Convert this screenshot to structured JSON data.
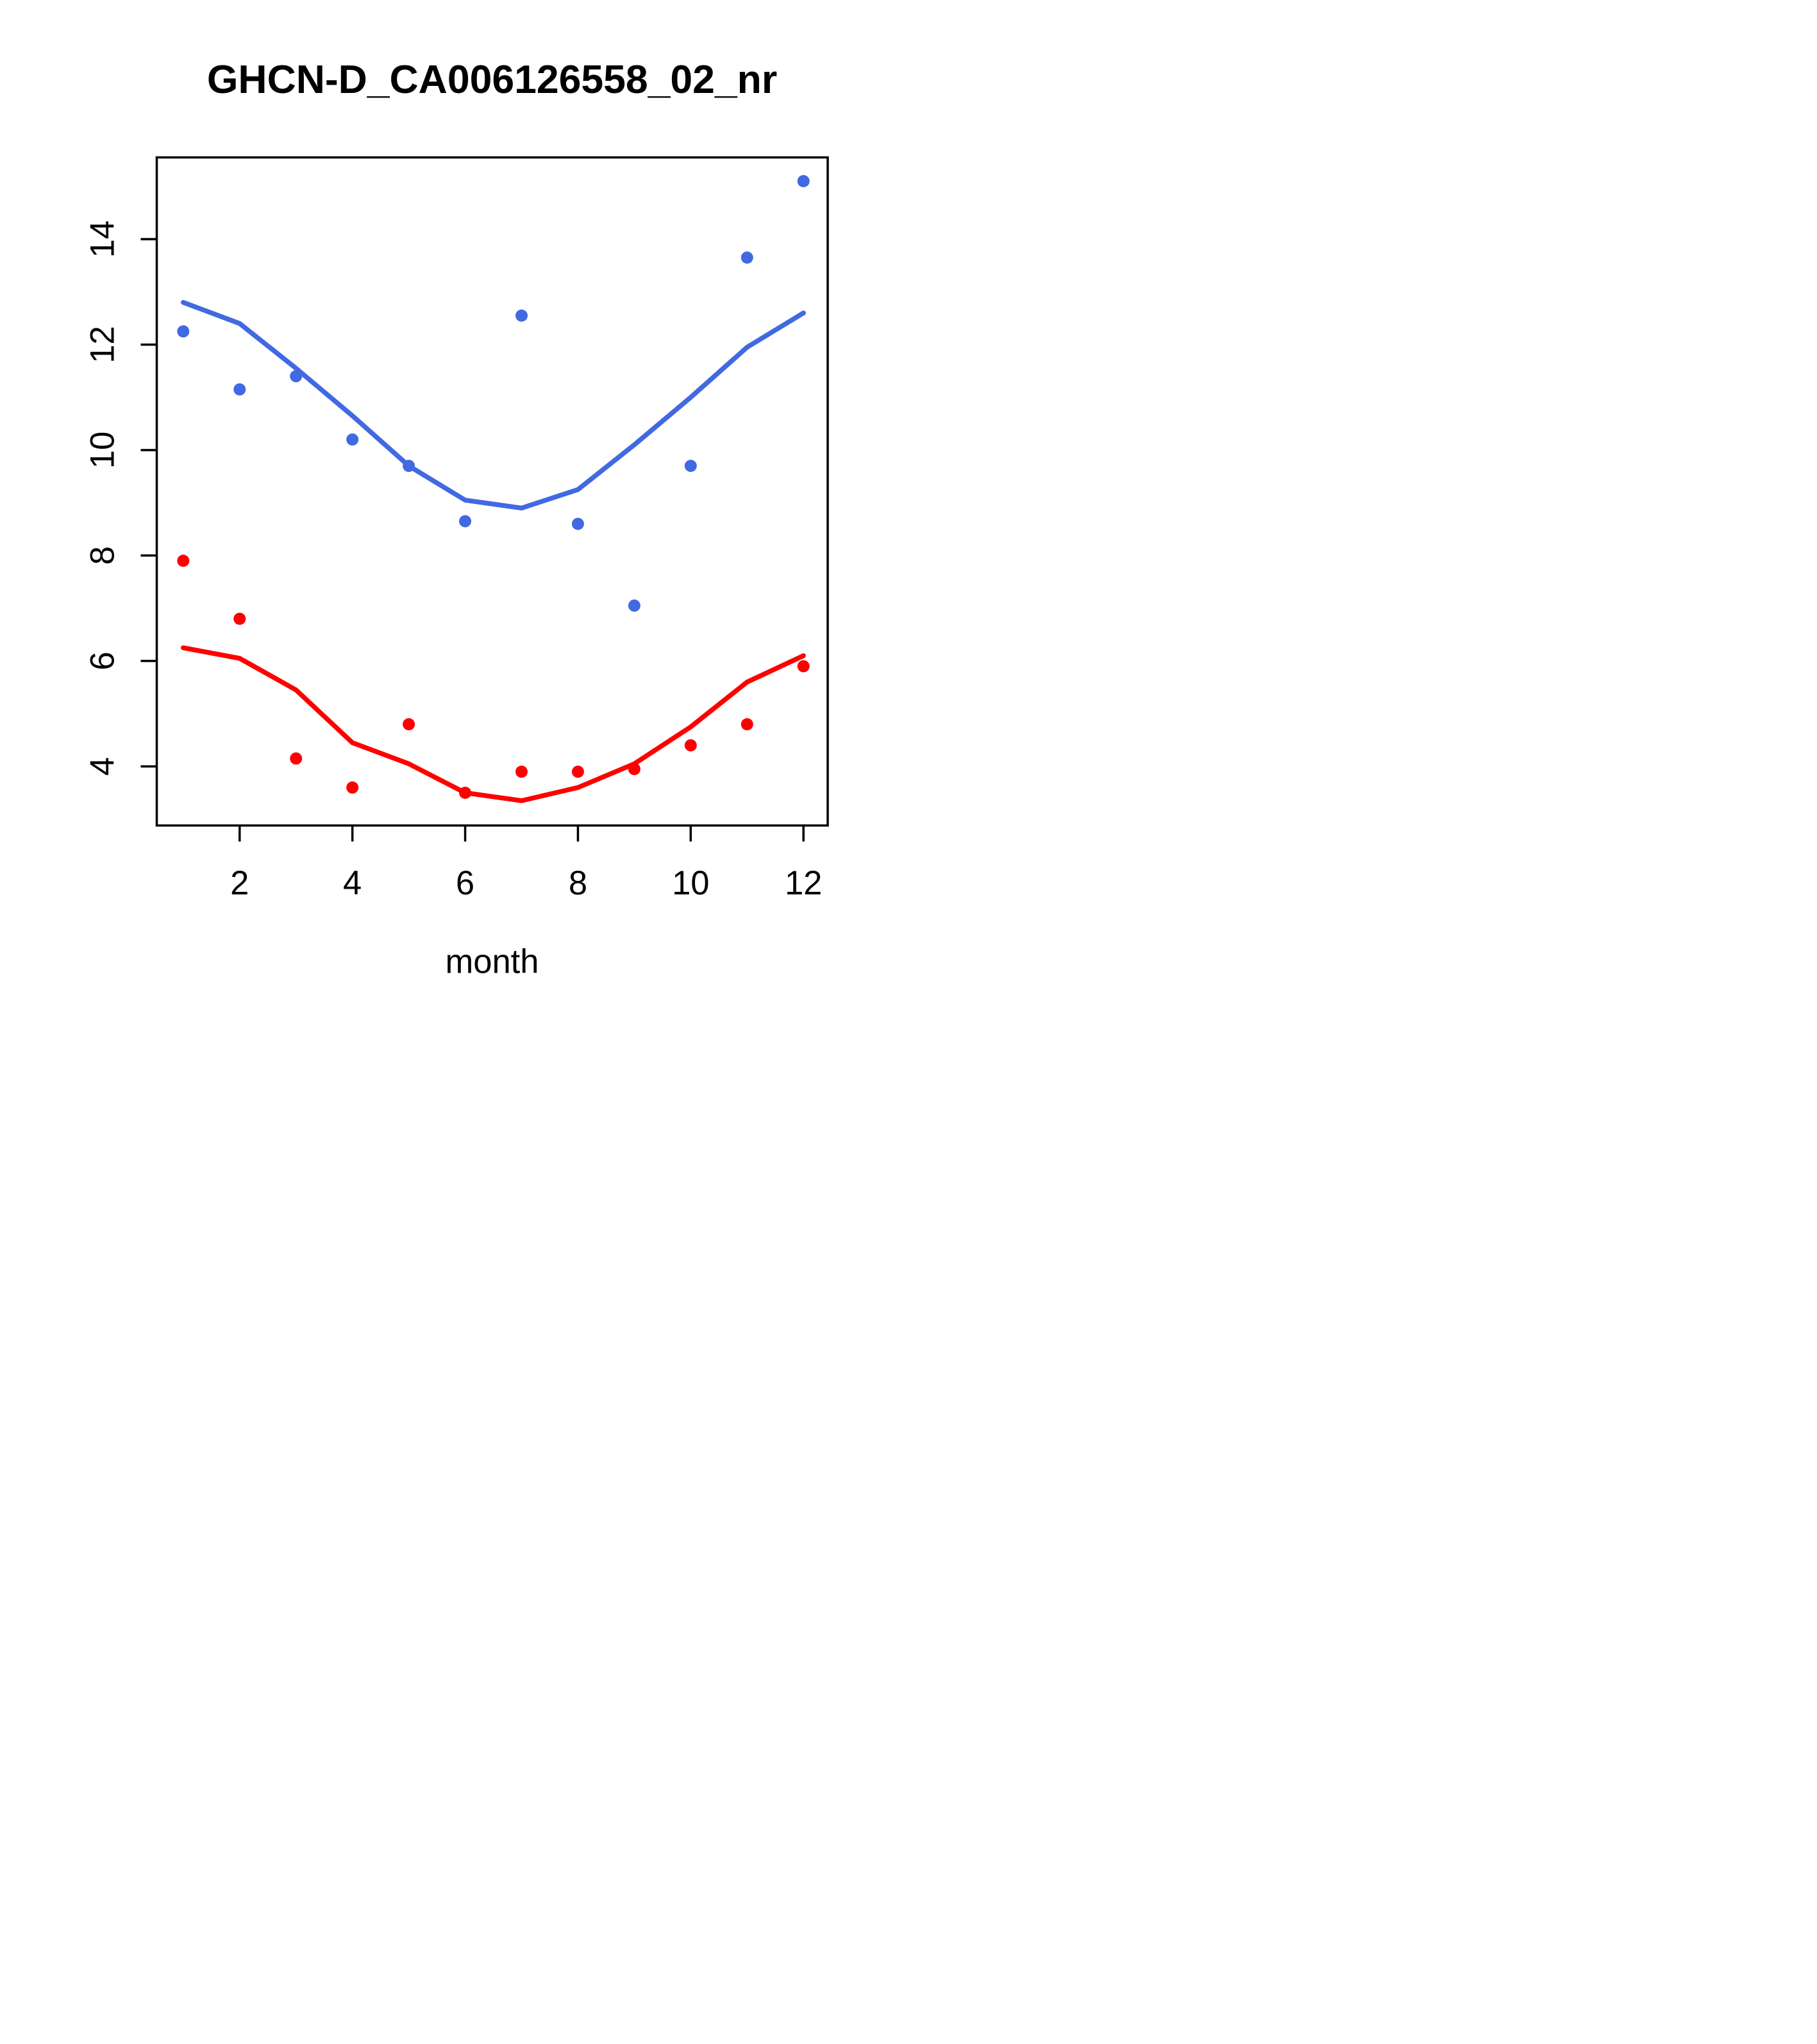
{
  "chart_data": {
    "type": "scatter",
    "title": "GHCN-D_CA006126558_02_nr",
    "xlabel": "month",
    "ylabel": "",
    "x": [
      1,
      2,
      3,
      4,
      5,
      6,
      7,
      8,
      9,
      10,
      11,
      12
    ],
    "x_ticks": [
      2,
      4,
      6,
      8,
      10,
      12
    ],
    "y_ticks": [
      4,
      6,
      8,
      10,
      12,
      14
    ],
    "xlim": [
      0.53,
      12.43
    ],
    "ylim": [
      2.88,
      15.55
    ],
    "grid": false,
    "legend": "none",
    "frame_color": "#000000",
    "background_color": "#ffffff",
    "series": [
      {
        "name": "upper-fit-line",
        "draw": "line",
        "color": "#4169E1",
        "values": [
          12.8,
          12.4,
          11.55,
          10.65,
          9.7,
          9.05,
          8.9,
          9.25,
          10.1,
          11.0,
          11.95,
          12.6
        ]
      },
      {
        "name": "upper-points",
        "draw": "points",
        "color": "#4169E1",
        "values": [
          12.25,
          11.15,
          11.4,
          10.2,
          9.7,
          8.65,
          12.55,
          8.6,
          7.05,
          9.7,
          13.65,
          15.1
        ]
      },
      {
        "name": "lower-fit-line",
        "draw": "line",
        "color": "#FF0000",
        "values": [
          6.25,
          6.05,
          5.45,
          4.45,
          4.05,
          3.5,
          3.35,
          3.6,
          4.05,
          4.75,
          5.6,
          6.1
        ]
      },
      {
        "name": "lower-points",
        "draw": "points",
        "color": "#FF0000",
        "values": [
          7.9,
          6.8,
          4.15,
          3.6,
          4.8,
          3.5,
          3.9,
          3.9,
          3.95,
          4.4,
          4.8,
          5.9
        ]
      }
    ]
  }
}
